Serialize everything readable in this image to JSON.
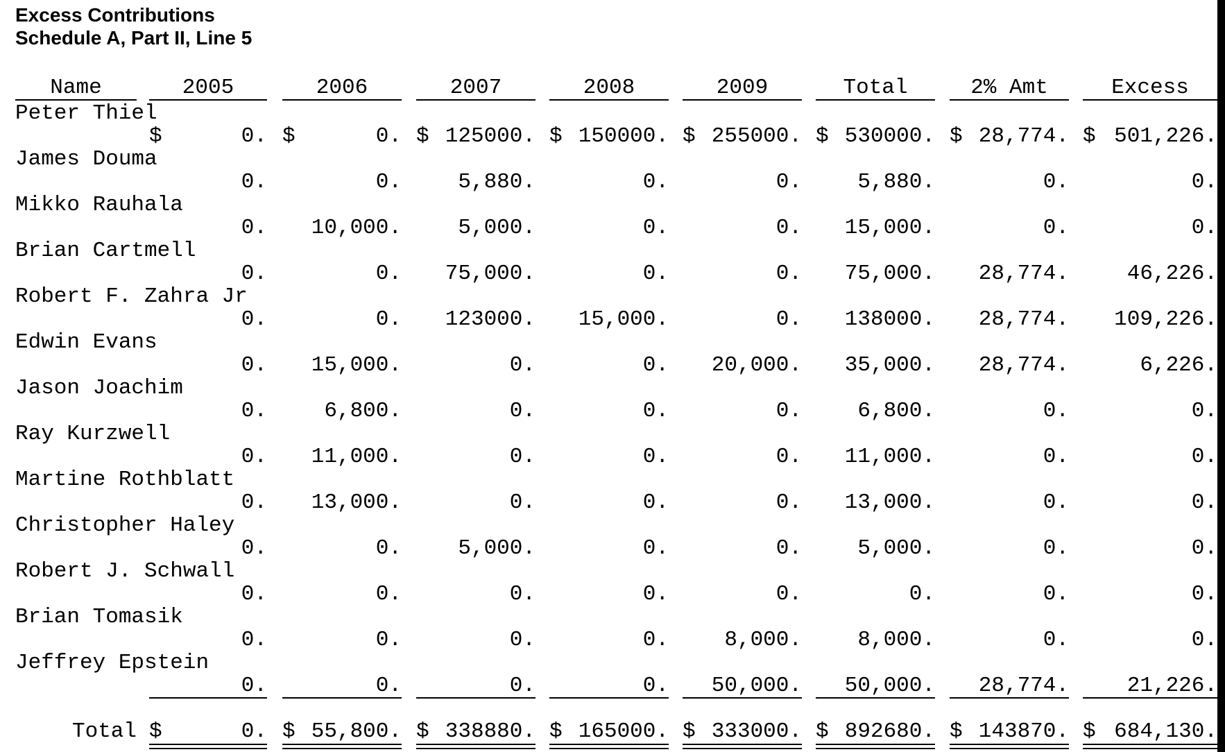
{
  "title": "Excess Contributions",
  "subtitle": "Schedule A, Part II, Line 5",
  "columns": [
    "Name",
    "2005",
    "2006",
    "2007",
    "2008",
    "2009",
    "Total",
    "2% Amt",
    "Excess"
  ],
  "rows": [
    {
      "name": "Peter Thiel",
      "values": [
        "0.",
        "0.",
        "125000.",
        "150000.",
        "255000.",
        "530000.",
        "28,774.",
        "501,226."
      ]
    },
    {
      "name": "James Douma",
      "values": [
        "0.",
        "0.",
        "5,880.",
        "0.",
        "0.",
        "5,880.",
        "0.",
        "0."
      ]
    },
    {
      "name": "Mikko Rauhala",
      "values": [
        "0.",
        "10,000.",
        "5,000.",
        "0.",
        "0.",
        "15,000.",
        "0.",
        "0."
      ]
    },
    {
      "name": "Brian Cartmell",
      "values": [
        "0.",
        "0.",
        "75,000.",
        "0.",
        "0.",
        "75,000.",
        "28,774.",
        "46,226."
      ]
    },
    {
      "name": "Robert F. Zahra Jr",
      "values": [
        "0.",
        "0.",
        "123000.",
        "15,000.",
        "0.",
        "138000.",
        "28,774.",
        "109,226."
      ]
    },
    {
      "name": "Edwin Evans",
      "values": [
        "0.",
        "15,000.",
        "0.",
        "0.",
        "20,000.",
        "35,000.",
        "28,774.",
        "6,226."
      ]
    },
    {
      "name": "Jason Joachim",
      "values": [
        "0.",
        "6,800.",
        "0.",
        "0.",
        "0.",
        "6,800.",
        "0.",
        "0."
      ]
    },
    {
      "name": "Ray Kurzwell",
      "values": [
        "0.",
        "11,000.",
        "0.",
        "0.",
        "0.",
        "11,000.",
        "0.",
        "0."
      ]
    },
    {
      "name": "Martine Rothblatt",
      "values": [
        "0.",
        "13,000.",
        "0.",
        "0.",
        "0.",
        "13,000.",
        "0.",
        "0."
      ]
    },
    {
      "name": "Christopher Haley",
      "values": [
        "0.",
        "0.",
        "5,000.",
        "0.",
        "0.",
        "5,000.",
        "0.",
        "0."
      ]
    },
    {
      "name": "Robert J. Schwall",
      "values": [
        "0.",
        "0.",
        "0.",
        "0.",
        "0.",
        "0.",
        "0.",
        "0."
      ]
    },
    {
      "name": "Brian Tomasik",
      "values": [
        "0.",
        "0.",
        "0.",
        "0.",
        "8,000.",
        "8,000.",
        "0.",
        "0."
      ]
    },
    {
      "name": "Jeffrey Epstein",
      "values": [
        "0.",
        "0.",
        "0.",
        "0.",
        "50,000.",
        "50,000.",
        "28,774.",
        "21,226."
      ]
    }
  ],
  "total": {
    "label": "Total",
    "values": [
      "0.",
      "55,800.",
      "338880.",
      "165000.",
      "333000.",
      "892680.",
      "143870.",
      "684,130."
    ]
  },
  "currency_symbol": "$"
}
